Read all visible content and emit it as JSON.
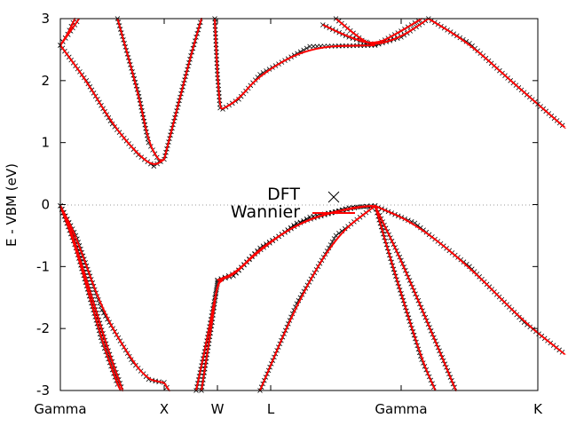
{
  "chart_data": {
    "type": "line",
    "title": "",
    "ylabel": "E - VBM (eV)",
    "xlabel": "",
    "ylim": [
      -3,
      3
    ],
    "x_ticks": [
      "Gamma",
      "X",
      "W",
      "L",
      "Gamma",
      "K"
    ],
    "y_ticks": [
      "-3",
      "-2",
      "-1",
      "0",
      "1",
      "2",
      "3"
    ],
    "grid": false,
    "reference_line": {
      "y": 0,
      "style": "dotted"
    },
    "legend": {
      "position": "center",
      "entries": [
        {
          "label": "DFT",
          "marker": "×"
        },
        {
          "label": "Wannier",
          "line": "solid"
        }
      ]
    },
    "series": [
      {
        "name": "DFT",
        "points": [
          {
            "k": "Gamma",
            "energies": [
              -0.02,
              -0.02,
              -0.02,
              2.57,
              2.57,
              2.57
            ]
          },
          {
            "k": "X",
            "energies": [
              -2.85,
              -3.0,
              0.73,
              0.73,
              3.0,
              3.0
            ]
          },
          {
            "k": "L",
            "energies": [
              -1.22,
              -1.22,
              -3.0,
              1.54,
              3.0,
              3.0
            ]
          },
          {
            "k": "Gamma",
            "energies": [
              -0.02,
              -0.02,
              -0.02,
              2.57,
              2.57,
              2.57
            ]
          },
          {
            "k": "K",
            "energies": [
              -2.42,
              -3.0,
              -3.0,
              1.24,
              3.0
            ]
          }
        ]
      },
      {
        "name": "Wannier"
      }
    ],
    "colors": {
      "wannier": "#ff0000",
      "dft": "#000000",
      "zero_line": "#999999"
    }
  }
}
